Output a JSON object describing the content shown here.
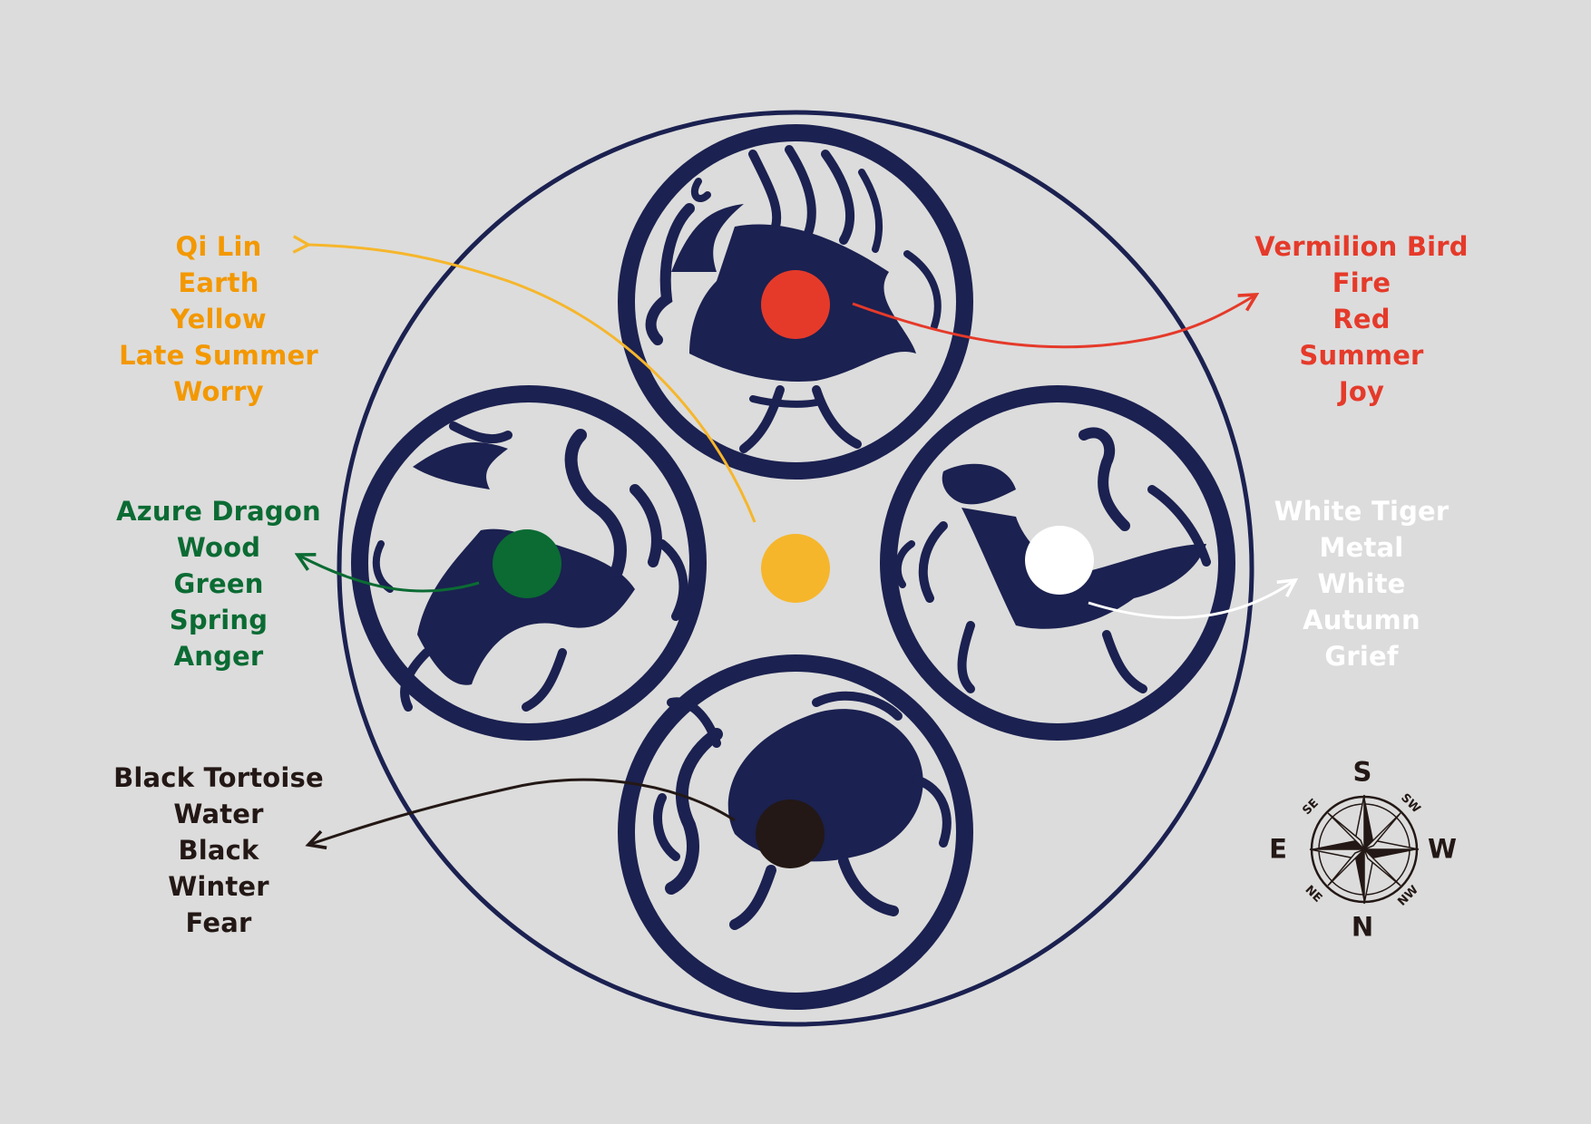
{
  "colors": {
    "background": "#dcdcdc",
    "navy": "#1b2150",
    "disc": "#dcdcdc",
    "earth": "#f6b62b",
    "earth_text": "#f39800",
    "fire": "#e53a2a",
    "wood": "#0b6b33",
    "metal": "#ffffff",
    "water": "#231815"
  },
  "center": {
    "name": "Qi Lin",
    "lines": [
      "Qi Lin",
      "Earth",
      "Yellow",
      "Late Summer",
      "Worry"
    ],
    "color": "#f39800",
    "dot_color": "#f6b62b"
  },
  "guardians": {
    "bird": {
      "lines": [
        "Vermilion Bird",
        "Fire",
        "Red",
        "Summer",
        "Joy"
      ],
      "color": "#e53a2a",
      "icon": "vermilion-bird-icon"
    },
    "tiger": {
      "lines": [
        "White Tiger",
        "Metal",
        "White",
        "Autumn",
        "Grief"
      ],
      "color": "#ffffff",
      "icon": "white-tiger-icon"
    },
    "dragon": {
      "lines": [
        "Azure Dragon",
        "Wood",
        "Green",
        "Spring",
        "Anger"
      ],
      "color": "#0b6b33",
      "icon": "azure-dragon-icon"
    },
    "tortoise": {
      "lines": [
        "Black Tortoise",
        "Water",
        "Black",
        "Winter",
        "Fear"
      ],
      "color": "#231815",
      "icon": "black-tortoise-icon"
    }
  },
  "compass": {
    "north": "N",
    "south": "S",
    "east": "E",
    "west": "W",
    "ne": "NE",
    "nw": "NW",
    "se": "SE",
    "sw": "SW",
    "icon": "compass-rose-icon"
  }
}
